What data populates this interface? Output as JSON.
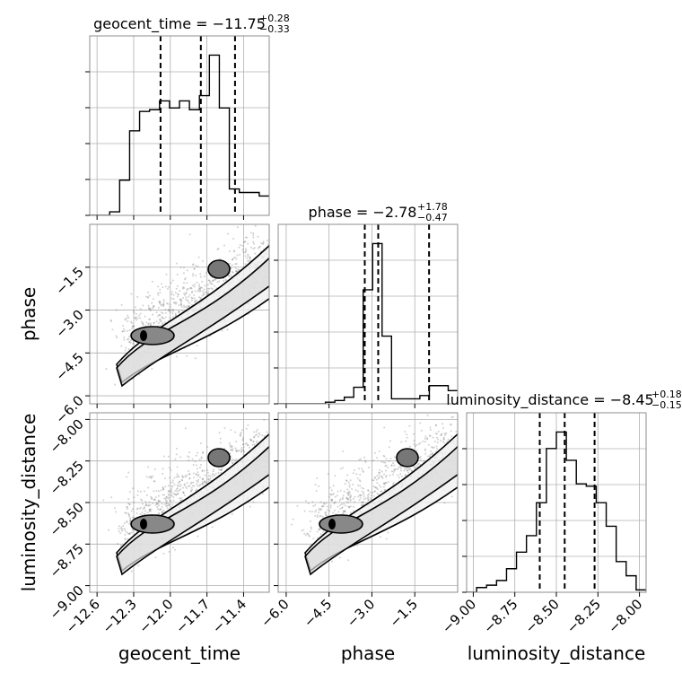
{
  "chart_data": {
    "type": "corner",
    "parameters": [
      "geocent_time",
      "phase",
      "luminosity_distance"
    ],
    "titles": [
      {
        "param": "geocent_time",
        "prefix": "geocent_time = ",
        "median": "−11.75",
        "plus": "+0.28",
        "minus": "−0.33"
      },
      {
        "param": "phase",
        "prefix": "phase = ",
        "median": "−2.78",
        "plus": "+1.78",
        "minus": "−0.47"
      },
      {
        "param": "luminosity_distance",
        "prefix": "luminosity_distance = ",
        "median": "−8.45",
        "plus": "+0.18",
        "minus": "−0.15"
      }
    ],
    "axis_labels": {
      "x": [
        "geocent_time",
        "phase",
        "luminosity_distance"
      ],
      "y": [
        "phase",
        "luminosity_distance"
      ]
    },
    "ranges": {
      "geocent_time": [
        -12.66,
        -11.19
      ],
      "phase": [
        -6.28,
        0.0
      ],
      "luminosity_distance": [
        -9.04,
        -7.96
      ]
    },
    "ticks": {
      "geocent_time": {
        "values": [
          -12.6,
          -12.3,
          -12.0,
          -11.7,
          -11.4
        ],
        "labels": [
          "−12.6",
          "−12.3",
          "−12.0",
          "−11.7",
          "−11.4"
        ]
      },
      "phase": {
        "values": [
          -6.0,
          -4.5,
          -3.0,
          -1.5
        ],
        "labels": [
          "−6.0",
          "−4.5",
          "−3.0",
          "−1.5"
        ]
      },
      "luminosity_distance": {
        "values": [
          -9.0,
          -8.75,
          -8.5,
          -8.25,
          -8.0
        ],
        "labels": [
          "−9.00",
          "−8.75",
          "−8.50",
          "−8.25",
          "−8.00"
        ]
      }
    },
    "quantiles": {
      "geocent_time": [
        -12.08,
        -11.75,
        -11.47
      ],
      "phase": [
        -3.25,
        -2.78,
        -1.0
      ],
      "luminosity_distance": [
        -8.6,
        -8.45,
        -8.27
      ]
    },
    "histograms": {
      "geocent_time": [
        0,
        0,
        2,
        20,
        48,
        59,
        60,
        65,
        61,
        65,
        60,
        68,
        91,
        61,
        15,
        13,
        13,
        11
      ],
      "phase": [
        0,
        0,
        0,
        0,
        0,
        1,
        2,
        4,
        10,
        69,
        97,
        41,
        3,
        3,
        3,
        5,
        11,
        11,
        8
      ],
      "luminosity_distance": [
        0,
        2,
        3,
        5,
        10,
        17,
        24,
        38,
        61,
        68,
        56,
        46,
        45,
        38,
        28,
        13,
        7,
        1
      ]
    },
    "grid": true
  }
}
